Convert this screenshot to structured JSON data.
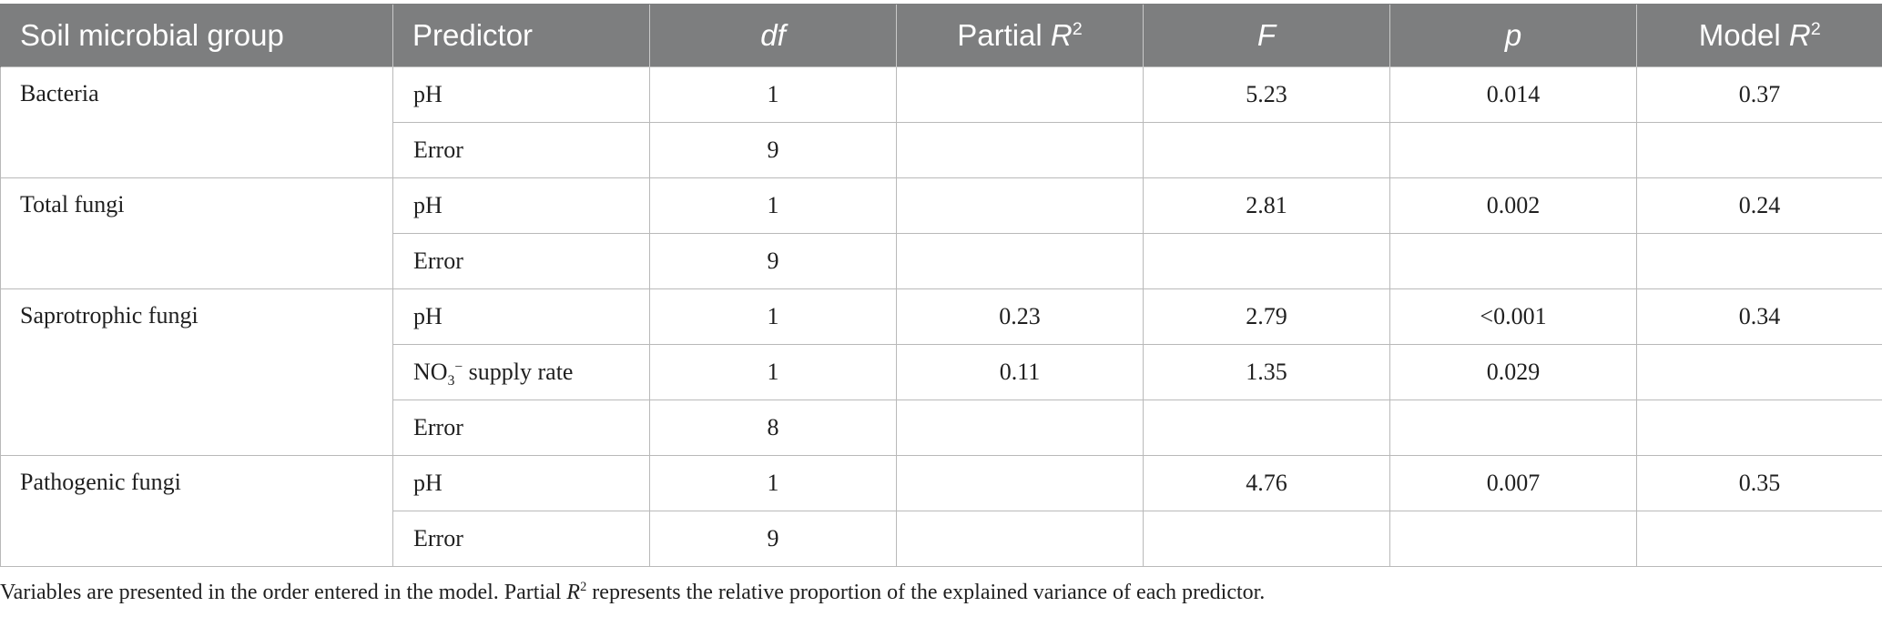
{
  "table": {
    "headers": {
      "group": "Soil microbial group",
      "predictor": "Predictor",
      "df": "df",
      "partial_r2_label": "Partial ",
      "partial_r2_var": "R",
      "partial_r2_sup": "2",
      "f": "F",
      "p": "p",
      "model_r2_label": "Model ",
      "model_r2_var": "R",
      "model_r2_sup": "2"
    },
    "groups": [
      {
        "name": "Bacteria",
        "rows": [
          {
            "predictor": "pH",
            "df": "1",
            "partial_r2": "",
            "f": "5.23",
            "p": "0.014",
            "model_r2": "0.37"
          },
          {
            "predictor": "Error",
            "df": "9",
            "partial_r2": "",
            "f": "",
            "p": "",
            "model_r2": ""
          }
        ]
      },
      {
        "name": "Total fungi",
        "rows": [
          {
            "predictor": "pH",
            "df": "1",
            "partial_r2": "",
            "f": "2.81",
            "p": "0.002",
            "model_r2": "0.24"
          },
          {
            "predictor": "Error",
            "df": "9",
            "partial_r2": "",
            "f": "",
            "p": "",
            "model_r2": ""
          }
        ]
      },
      {
        "name": "Saprotrophic fungi",
        "rows": [
          {
            "predictor": "pH",
            "df": "1",
            "partial_r2": "0.23",
            "f": "2.79",
            "p": "<0.001",
            "model_r2": "0.34"
          },
          {
            "predictor_base": "NO",
            "predictor_sub": "3",
            "predictor_sup": "−",
            "predictor_rest": " supply rate",
            "df": "1",
            "partial_r2": "0.11",
            "f": "1.35",
            "p": "0.029",
            "model_r2": ""
          },
          {
            "predictor": "Error",
            "df": "8",
            "partial_r2": "",
            "f": "",
            "p": "",
            "model_r2": ""
          }
        ]
      },
      {
        "name": "Pathogenic fungi",
        "rows": [
          {
            "predictor": "pH",
            "df": "1",
            "partial_r2": "",
            "f": "4.76",
            "p": "0.007",
            "model_r2": "0.35"
          },
          {
            "predictor": "Error",
            "df": "9",
            "partial_r2": "",
            "f": "",
            "p": "",
            "model_r2": ""
          }
        ]
      }
    ]
  },
  "footnote": {
    "part1": "Variables are presented in the order entered in the model. Partial ",
    "var": "R",
    "sup": "2",
    "part2": " represents the relative proportion of the explained variance of each predictor."
  }
}
